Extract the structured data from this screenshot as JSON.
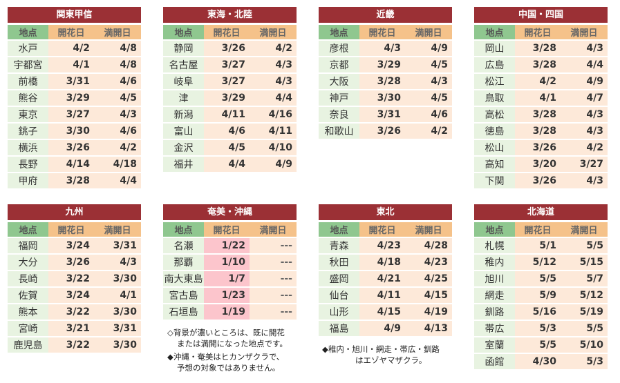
{
  "headers": {
    "loc": "地点",
    "bloom": "開花日",
    "full": "満開日"
  },
  "regions": [
    {
      "title": "関東甲信",
      "rows": [
        [
          "水戸",
          "4/2",
          "4/8"
        ],
        [
          "宇都宮",
          "4/1",
          "4/8"
        ],
        [
          "前橋",
          "3/31",
          "4/6"
        ],
        [
          "熊谷",
          "3/29",
          "4/5"
        ],
        [
          "東京",
          "3/27",
          "4/3"
        ],
        [
          "銚子",
          "3/30",
          "4/6"
        ],
        [
          "横浜",
          "3/26",
          "4/2"
        ],
        [
          "長野",
          "4/14",
          "4/18"
        ],
        [
          "甲府",
          "3/28",
          "4/4"
        ]
      ]
    },
    {
      "title": "東海・北陸",
      "rows": [
        [
          "静岡",
          "3/26",
          "4/2"
        ],
        [
          "名古屋",
          "3/27",
          "4/3"
        ],
        [
          "岐阜",
          "3/27",
          "4/3"
        ],
        [
          "津",
          "3/29",
          "4/4"
        ],
        [
          "新潟",
          "4/11",
          "4/16"
        ],
        [
          "富山",
          "4/6",
          "4/11"
        ],
        [
          "金沢",
          "4/5",
          "4/10"
        ],
        [
          "福井",
          "4/4",
          "4/9"
        ]
      ]
    },
    {
      "title": "近畿",
      "rows": [
        [
          "彦根",
          "4/3",
          "4/9"
        ],
        [
          "京都",
          "3/29",
          "4/5"
        ],
        [
          "大阪",
          "3/28",
          "4/3"
        ],
        [
          "神戸",
          "3/30",
          "4/5"
        ],
        [
          "奈良",
          "3/31",
          "4/6"
        ],
        [
          "和歌山",
          "3/26",
          "4/2"
        ]
      ]
    },
    {
      "title": "中国・四国",
      "rows": [
        [
          "岡山",
          "3/28",
          "4/3"
        ],
        [
          "広島",
          "3/28",
          "4/4"
        ],
        [
          "松江",
          "4/2",
          "4/9"
        ],
        [
          "鳥取",
          "4/1",
          "4/7"
        ],
        [
          "高松",
          "3/28",
          "4/3"
        ],
        [
          "徳島",
          "3/28",
          "4/3"
        ],
        [
          "松山",
          "3/26",
          "4/2"
        ],
        [
          "高知",
          "3/20",
          "3/27"
        ],
        [
          "下関",
          "3/26",
          "4/3"
        ]
      ]
    },
    {
      "title": "九州",
      "rows": [
        [
          "福岡",
          "3/24",
          "3/31"
        ],
        [
          "大分",
          "3/26",
          "4/3"
        ],
        [
          "長崎",
          "3/22",
          "3/30"
        ],
        [
          "佐賀",
          "3/24",
          "4/1"
        ],
        [
          "熊本",
          "3/22",
          "3/30"
        ],
        [
          "宮崎",
          "3/21",
          "3/31"
        ],
        [
          "鹿児島",
          "3/22",
          "3/30"
        ]
      ]
    },
    {
      "title": "奄美・沖縄",
      "rows": [
        [
          "名瀬",
          "1/22",
          "---"
        ],
        [
          "那覇",
          "1/10",
          "---"
        ],
        [
          "南大東島",
          "1/7",
          "---"
        ],
        [
          "宮古島",
          "1/23",
          "---"
        ],
        [
          "石垣島",
          "1/19",
          "---"
        ]
      ]
    },
    {
      "title": "東北",
      "rows": [
        [
          "青森",
          "4/23",
          "4/28"
        ],
        [
          "秋田",
          "4/18",
          "4/23"
        ],
        [
          "盛岡",
          "4/21",
          "4/25"
        ],
        [
          "仙台",
          "4/11",
          "4/15"
        ],
        [
          "山形",
          "4/15",
          "4/19"
        ],
        [
          "福島",
          "4/9",
          "4/13"
        ]
      ]
    },
    {
      "title": "北海道",
      "rows": [
        [
          "札幌",
          "5/1",
          "5/5"
        ],
        [
          "稚内",
          "5/12",
          "5/15"
        ],
        [
          "旭川",
          "5/5",
          "5/7"
        ],
        [
          "網走",
          "5/9",
          "5/12"
        ],
        [
          "釧路",
          "5/16",
          "5/19"
        ],
        [
          "帯広",
          "5/3",
          "5/5"
        ],
        [
          "室蘭",
          "5/5",
          "5/10"
        ],
        [
          "函館",
          "4/30",
          "5/3"
        ]
      ]
    }
  ],
  "notes": {
    "okinawa_1a": "◇背景が濃いところは、既に開花",
    "okinawa_1b": "または満開になった地点です。",
    "okinawa_2a": "◆沖縄・奄美はヒカンザクラで、",
    "okinawa_2b": "予想の対象ではありません。",
    "tohoku_1a": "◆稚内・旭川・網走・帯広・釧路",
    "tohoku_1b": "はエゾヤマザクラ。"
  },
  "colors": {
    "title_bg": "#9b3035",
    "loc_header": "#8fc78f",
    "date_header": "#f5c28a",
    "loc_cell": "#e8f3e1",
    "date_cell": "#fde9d9",
    "bloomed_cell": "#fcc5cc"
  }
}
